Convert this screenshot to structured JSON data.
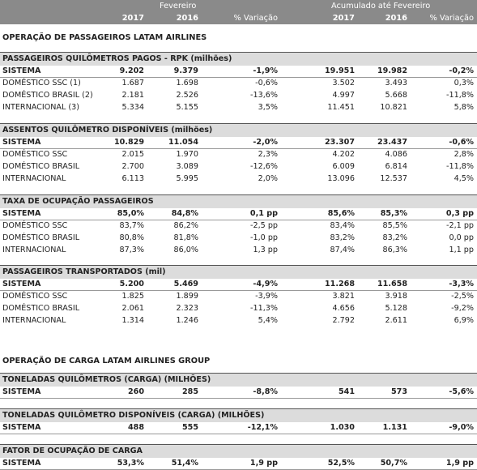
{
  "header": {
    "group1": "Fevereiro",
    "group2": "Acumulado até Fevereiro",
    "y2017a": "2017",
    "y2016a": "2016",
    "var_a": "% Variação",
    "y2017b": "2017",
    "y2016b": "2016",
    "var_b": "% Variação"
  },
  "title_pax": "OPERAÇÃO DE PASSAGEIROS LATAM AIRLINES",
  "title_cargo": "OPERAÇÃO DE CARGA LATAM AIRLINES GROUP",
  "sections": [
    {
      "title": "PASSAGEIROS QUILÔMETROS PAGOS - RPK (milhões)",
      "rows": [
        {
          "label": "SISTEMA",
          "v": [
            "9.202",
            "9.379",
            "-1,9%",
            "19.951",
            "19.982",
            "-0,2%"
          ]
        },
        {
          "label": "DOMÉSTICO SSC (1)",
          "v": [
            "1.687",
            "1.698",
            "-0,6%",
            "3.502",
            "3.493",
            "0,3%"
          ]
        },
        {
          "label": "DOMÉSTICO BRASIL (2)",
          "v": [
            "2.181",
            "2.526",
            "-13,6%",
            "4.997",
            "5.668",
            "-11,8%"
          ]
        },
        {
          "label": "INTERNACIONAL (3)",
          "v": [
            "5.334",
            "5.155",
            "3,5%",
            "11.451",
            "10.821",
            "5,8%"
          ]
        }
      ]
    },
    {
      "title": "ASSENTOS QUILÔMETRO DISPONÍVEIS (milhões)",
      "rows": [
        {
          "label": "SISTEMA",
          "v": [
            "10.829",
            "11.054",
            "-2,0%",
            "23.307",
            "23.437",
            "-0,6%"
          ]
        },
        {
          "label": "DOMÉSTICO SSC",
          "v": [
            "2.015",
            "1.970",
            "2,3%",
            "4.202",
            "4.086",
            "2,8%"
          ]
        },
        {
          "label": "DOMÉSTICO BRASIL",
          "v": [
            "2.700",
            "3.089",
            "-12,6%",
            "6.009",
            "6.814",
            "-11,8%"
          ]
        },
        {
          "label": "INTERNACIONAL",
          "v": [
            "6.113",
            "5.995",
            "2,0%",
            "13.096",
            "12.537",
            "4,5%"
          ]
        }
      ]
    },
    {
      "title": "TAXA DE OCUPAÇÃO PASSAGEIROS",
      "rows": [
        {
          "label": "SISTEMA",
          "v": [
            "85,0%",
            "84,8%",
            "0,1 pp",
            "85,6%",
            "85,3%",
            "0,3 pp"
          ]
        },
        {
          "label": "DOMÉSTICO SSC",
          "v": [
            "83,7%",
            "86,2%",
            "-2,5 pp",
            "83,4%",
            "85,5%",
            "-2,1 pp"
          ]
        },
        {
          "label": "DOMÉSTICO BRASIL",
          "v": [
            "80,8%",
            "81,8%",
            "-1,0 pp",
            "83,2%",
            "83,2%",
            "0,0 pp"
          ]
        },
        {
          "label": "INTERNACIONAL",
          "v": [
            "87,3%",
            "86,0%",
            "1,3 pp",
            "87,4%",
            "86,3%",
            "1,1 pp"
          ]
        }
      ]
    },
    {
      "title": "PASSAGEIROS TRANSPORTADOS  (mil)",
      "rows": [
        {
          "label": "SISTEMA",
          "v": [
            "5.200",
            "5.469",
            "-4,9%",
            "11.268",
            "11.658",
            "-3,3%"
          ]
        },
        {
          "label": "DOMÉSTICO SSC",
          "v": [
            "1.825",
            "1.899",
            "-3,9%",
            "3.821",
            "3.918",
            "-2,5%"
          ]
        },
        {
          "label": "DOMÉSTICO BRASIL",
          "v": [
            "2.061",
            "2.323",
            "-11,3%",
            "4.656",
            "5.128",
            "-9,2%"
          ]
        },
        {
          "label": "INTERNACIONAL",
          "v": [
            "1.314",
            "1.246",
            "5,4%",
            "2.792",
            "2.611",
            "6,9%"
          ]
        }
      ]
    },
    {
      "title": "TONELADAS QUILÔMETROS (CARGA)  (MILHÕES)",
      "rows": [
        {
          "label": "SISTEMA",
          "v": [
            "260",
            "285",
            "-8,8%",
            "541",
            "573",
            "-5,6%"
          ]
        }
      ]
    },
    {
      "title": "TONELADAS QUILÔMETRO DISPONÍVEIS  (CARGA)  (MILHÕES)",
      "rows": [
        {
          "label": "SISTEMA",
          "v": [
            "488",
            "555",
            "-12,1%",
            "1.030",
            "1.131",
            "-9,0%"
          ]
        }
      ]
    },
    {
      "title": "FATOR DE OCUPAÇÃO DE CARGA",
      "rows": [
        {
          "label": "SISTEMA",
          "v": [
            "53,3%",
            "51,4%",
            "1,9 pp",
            "52,5%",
            "50,7%",
            "1,9 pp"
          ]
        }
      ]
    }
  ]
}
